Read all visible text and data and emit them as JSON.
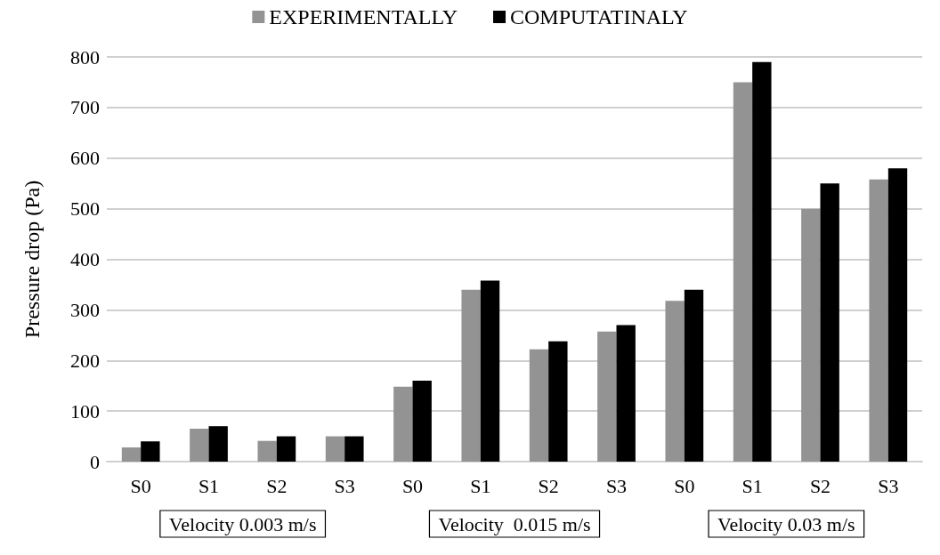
{
  "chart_data": {
    "type": "bar",
    "ylabel": "Pressure drop (Pa)",
    "categories": [
      "S0",
      "S1",
      "S2",
      "S3",
      "S0",
      "S1",
      "S2",
      "S3",
      "S0",
      "S1",
      "S2",
      "S3"
    ],
    "series": [
      {
        "name": "EXPERIMENTALLY",
        "color": "#939393",
        "values": [
          28,
          65,
          41,
          50,
          148,
          340,
          222,
          257,
          318,
          750,
          500,
          558
        ]
      },
      {
        "name": "COMPUTATINALY",
        "color": "#000000",
        "values": [
          40,
          70,
          50,
          50,
          160,
          358,
          238,
          270,
          340,
          790,
          550,
          580
        ]
      }
    ],
    "ylim": [
      0,
      800
    ],
    "yticks": [
      0,
      100,
      200,
      300,
      400,
      500,
      600,
      700,
      800
    ],
    "grid": "y",
    "legend": "top",
    "annotations": [
      "Velocity 0.003 m/s",
      "Velocity  0.015 m/s",
      "Velocity 0.03 m/s"
    ]
  }
}
